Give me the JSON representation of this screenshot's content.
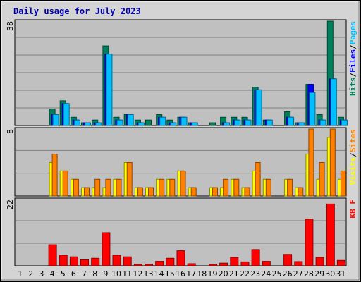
{
  "chart_data": {
    "type": "bar",
    "title": "Daily usage for July 2023",
    "days": [
      "1",
      "2",
      "3",
      "4",
      "5",
      "6",
      "7",
      "8",
      "9",
      "10",
      "11",
      "12",
      "13",
      "14",
      "15",
      "16",
      "17",
      "18",
      "19",
      "20",
      "21",
      "22",
      "23",
      "24",
      "25",
      "26",
      "27",
      "28",
      "29",
      "30",
      "31"
    ],
    "weekend_days": [
      "1",
      "2",
      "8",
      "9",
      "15",
      "16",
      "22",
      "23",
      "29",
      "30"
    ],
    "colors": {
      "hits": "#00805c",
      "files": "#0000ff",
      "pages": "#00c0ff",
      "visits": "#ffff00",
      "sites": "#ff8000",
      "kbytes": "#ff0000",
      "weekday_label": "#000000",
      "weekend_label": "#00805c",
      "plot_bg": "#c0c0c0",
      "frame_bg": "#d4d4d4"
    },
    "panels": [
      {
        "name": "hits-files-pages",
        "ymax_label": "38",
        "ymax": 38,
        "legend": [
          {
            "text": "Hits",
            "color": "#00805c"
          },
          {
            "text": "/",
            "color": "#000000"
          },
          {
            "text": "Files",
            "color": "#0000ff"
          },
          {
            "text": "/",
            "color": "#000000"
          },
          {
            "text": "Pages",
            "color": "#00c0ff"
          }
        ],
        "series": [
          {
            "key": "hits",
            "values": [
              0,
              0,
              0,
              6,
              9,
              3,
              1,
              2,
              29,
              3,
              4,
              2,
              2,
              4,
              2,
              3,
              1,
              0,
              1,
              3,
              3,
              3,
              14,
              2,
              0,
              5,
              1,
              15,
              4,
              38,
              3
            ]
          },
          {
            "key": "files",
            "values": [
              0,
              0,
              0,
              4,
              8,
              2,
              1,
              1,
              26,
              2,
              4,
              1,
              0,
              3,
              1,
              3,
              1,
              0,
              0,
              1,
              2,
              2,
              13,
              2,
              0,
              3,
              1,
              15,
              2,
              17,
              2
            ]
          },
          {
            "key": "pages",
            "values": [
              0,
              0,
              0,
              4,
              8,
              2,
              1,
              1,
              26,
              2,
              4,
              1,
              0,
              3,
              1,
              3,
              1,
              0,
              0,
              1,
              2,
              2,
              13,
              2,
              0,
              3,
              1,
              12,
              2,
              17,
              2
            ]
          }
        ]
      },
      {
        "name": "visits-sites",
        "ymax_label": "8",
        "ymax": 8,
        "legend": [
          {
            "text": "Visits",
            "color": "#ffff00"
          },
          {
            "text": "/",
            "color": "#000000"
          },
          {
            "text": "Sites",
            "color": "#ff8000"
          }
        ],
        "series": [
          {
            "key": "visits",
            "values": [
              0,
              0,
              0,
              4,
              3,
              2,
              1,
              1,
              1,
              2,
              4,
              1,
              1,
              2,
              2,
              3,
              1,
              0,
              1,
              1,
              2,
              1,
              3,
              2,
              0,
              2,
              1,
              5,
              2,
              7,
              2
            ]
          },
          {
            "key": "sites",
            "values": [
              0,
              0,
              0,
              5,
              3,
              2,
              1,
              2,
              2,
              2,
              4,
              1,
              1,
              2,
              2,
              3,
              1,
              0,
              1,
              2,
              2,
              1,
              4,
              2,
              0,
              2,
              1,
              8,
              4,
              8,
              3
            ]
          }
        ]
      },
      {
        "name": "kbytes",
        "ymax_label": "22",
        "ymax": 22,
        "legend": [
          {
            "text": "KB F",
            "color": "#ff0000"
          }
        ],
        "series": [
          {
            "key": "kbytes",
            "values": [
              0,
              0,
              0,
              7,
              3.5,
              3,
              2,
              2.5,
              11,
              3.5,
              3,
              0.5,
              0.5,
              1.5,
              2.5,
              5,
              0.7,
              0,
              0.5,
              0.9,
              2.8,
              1.3,
              5.4,
              1.5,
              0,
              3.8,
              1.4,
              15.5,
              2.8,
              20.5,
              1.8
            ]
          }
        ]
      }
    ]
  }
}
